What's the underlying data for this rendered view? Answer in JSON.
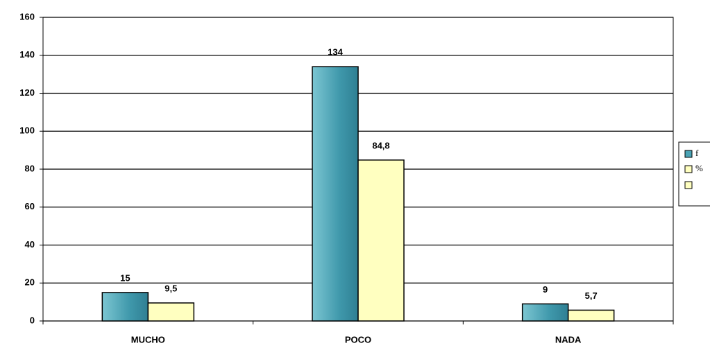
{
  "chart_data": {
    "type": "bar",
    "categories": [
      "MUCHO",
      "POCO",
      "NADA"
    ],
    "series": [
      {
        "name": "f",
        "color": "#4aa3b5",
        "values": [
          15,
          134,
          9
        ],
        "value_labels": [
          "15",
          "134",
          "9"
        ]
      },
      {
        "name": "%",
        "color": "#ffffc0",
        "values": [
          9.5,
          84.8,
          5.7
        ],
        "value_labels": [
          "9,5",
          "84,8",
          "5,7"
        ]
      }
    ],
    "ylim": [
      0,
      160
    ],
    "yticks": [
      0,
      20,
      40,
      60,
      80,
      100,
      120,
      140,
      160
    ],
    "grid": true,
    "legend": "right"
  }
}
